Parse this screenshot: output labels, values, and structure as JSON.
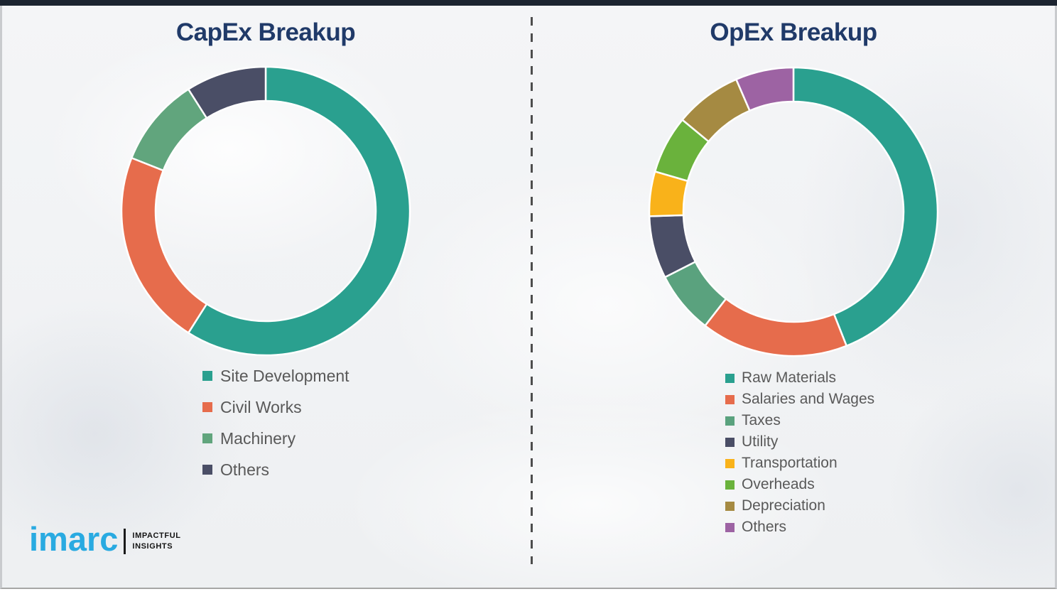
{
  "page": {
    "top_bar_color": "#1c2430",
    "background_color": "#eff1f3",
    "divider_color": "#4d4d4d",
    "title_color": "#203a69",
    "legend_text_color": "#595959",
    "frame_border_color": "#c9cbce"
  },
  "chart_data": [
    {
      "type": "pie",
      "variant": "donut",
      "title": "CapEx Breakup",
      "labels": [
        "Site Development",
        "Civil Works",
        "Machinery",
        "Others"
      ],
      "values": [
        59,
        22,
        10,
        9
      ],
      "colors": [
        "#2aa08f",
        "#e66c4c",
        "#61a57d",
        "#4a4e66"
      ],
      "start_angle_deg": 0,
      "direction": "clockwise",
      "data_labels_shown": false,
      "legend_position": "below-left"
    },
    {
      "type": "pie",
      "variant": "donut",
      "title": "OpEx Breakup",
      "labels": [
        "Raw Materials",
        "Salaries and Wages",
        "Taxes",
        "Utility",
        "Transportation",
        "Overheads",
        "Depreciation",
        "Others"
      ],
      "values": [
        44,
        16.5,
        7,
        7,
        5,
        6.5,
        7.5,
        6.5
      ],
      "colors": [
        "#2aa08f",
        "#e66c4c",
        "#5aa27e",
        "#4a4e66",
        "#f9b21a",
        "#6ab23c",
        "#a58a42",
        "#9d63a3"
      ],
      "start_angle_deg": 0,
      "direction": "clockwise",
      "data_labels_shown": false,
      "legend_position": "below-left"
    }
  ],
  "logo": {
    "brand": "imarc",
    "tagline_line1": "IMPACTFUL",
    "tagline_line2": "INSIGHTS",
    "brand_color": "#29aae1"
  }
}
